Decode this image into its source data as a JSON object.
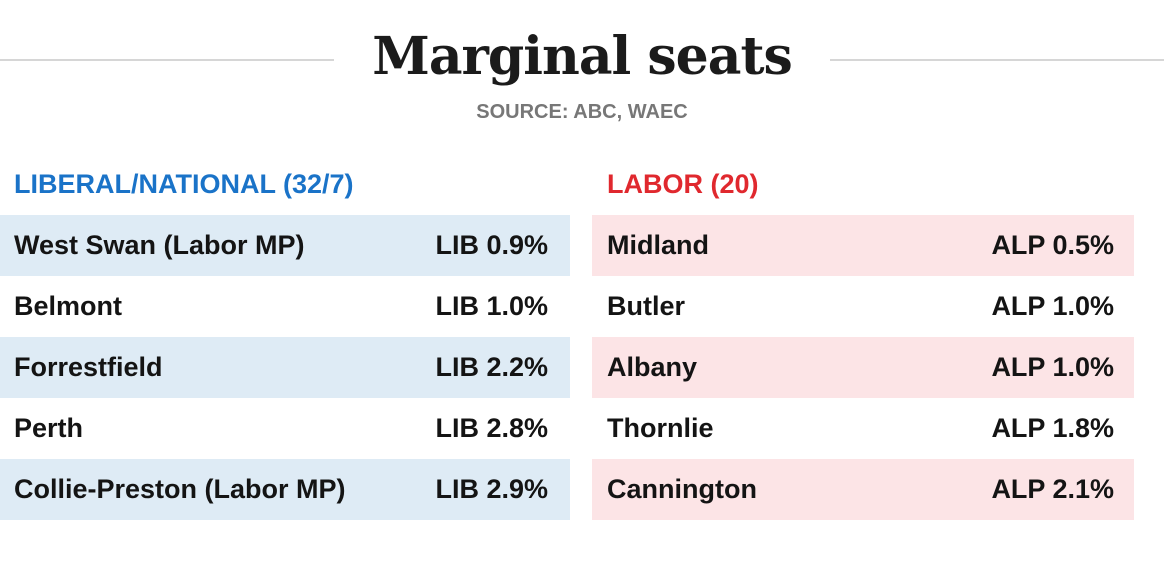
{
  "title": "Marginal seats",
  "source": "SOURCE: ABC, WAEC",
  "colors": {
    "liberal_heading": "#1a73c8",
    "labor_heading": "#e0282e",
    "liberal_row": "#deebf5",
    "labor_row": "#fce4e6"
  },
  "chart_data": {
    "type": "table",
    "title": "Marginal seats",
    "source": "SOURCE: ABC, WAEC",
    "tables": [
      {
        "heading": "LIBERAL/NATIONAL (32/7)",
        "rows": [
          {
            "seat": "West Swan (Labor MP)",
            "margin": "LIB 0.9%",
            "value": 0.9
          },
          {
            "seat": "Belmont",
            "margin": "LIB 1.0%",
            "value": 1.0
          },
          {
            "seat": "Forrestfield",
            "margin": "LIB 2.2%",
            "value": 2.2
          },
          {
            "seat": "Perth",
            "margin": "LIB 2.8%",
            "value": 2.8
          },
          {
            "seat": "Collie-Preston (Labor MP)",
            "margin": "LIB 2.9%",
            "value": 2.9
          }
        ]
      },
      {
        "heading": "LABOR (20)",
        "rows": [
          {
            "seat": "Midland",
            "margin": "ALP 0.5%",
            "value": 0.5
          },
          {
            "seat": "Butler",
            "margin": "ALP 1.0%",
            "value": 1.0
          },
          {
            "seat": "Albany",
            "margin": "ALP 1.0%",
            "value": 1.0
          },
          {
            "seat": "Thornlie",
            "margin": "ALP 1.8%",
            "value": 1.8
          },
          {
            "seat": "Cannington",
            "margin": "ALP 2.1%",
            "value": 2.1
          }
        ]
      }
    ]
  }
}
